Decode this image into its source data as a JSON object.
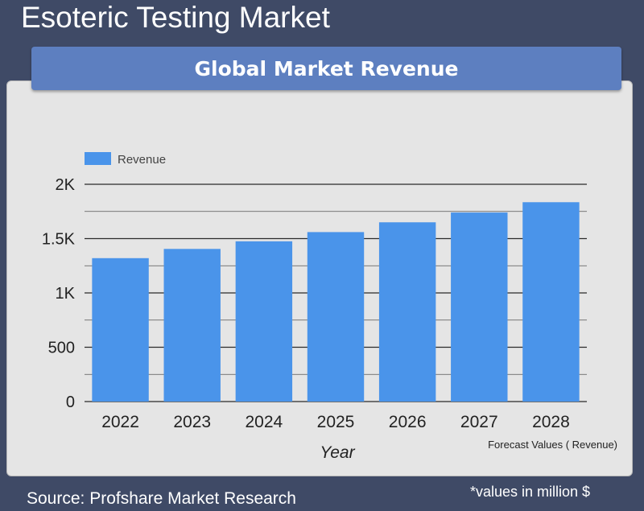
{
  "page": {
    "title": "Esoteric Testing Market",
    "banner": "Global Market Revenue",
    "source": "Source: Profshare Market Research",
    "note": "*values in million $"
  },
  "colors": {
    "background": "#3f4a66",
    "banner": "#5d7fc0",
    "card": "#e5e5e5",
    "bar": "#4a94ea"
  },
  "chart_data": {
    "type": "bar",
    "title": "",
    "categories": [
      "2022",
      "2023",
      "2024",
      "2025",
      "2026",
      "2027",
      "2028"
    ],
    "series": [
      {
        "name": "Revenue",
        "values": [
          1320,
          1405,
          1475,
          1560,
          1650,
          1740,
          1835
        ]
      }
    ],
    "xlabel": "Year",
    "ylabel": "",
    "ylim": [
      0,
      2000
    ],
    "yticks": [
      0,
      500,
      1000,
      1500,
      2000
    ],
    "ytick_labels": [
      "0",
      "500",
      "1K",
      "1.5K",
      "2K"
    ],
    "grid": true,
    "legend": "top-left",
    "annotation": "Forecast Values ( Revenue)"
  }
}
